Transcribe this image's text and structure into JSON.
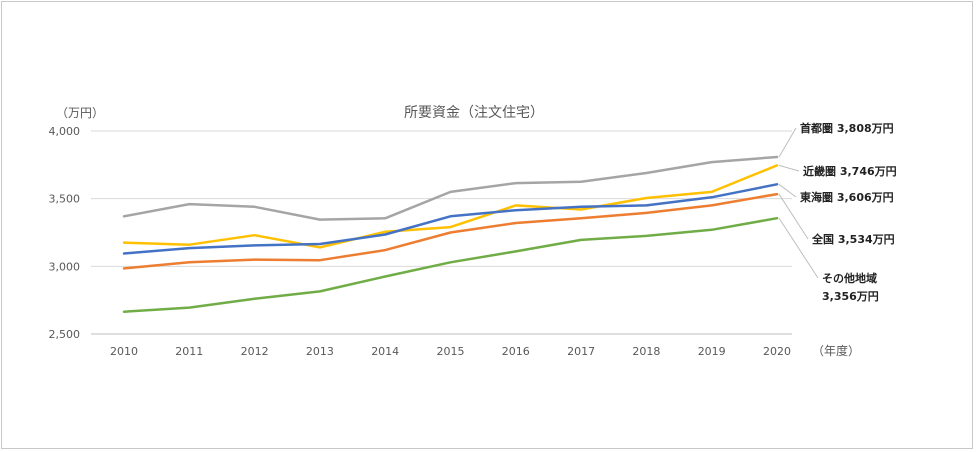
{
  "chart_data": {
    "type": "line",
    "title": "所要資金（注文住宅）",
    "ylabel": "（万円）",
    "xlabel": "（年度）",
    "ylim": [
      2500,
      4000
    ],
    "yticks": [
      "2,500",
      "3,000",
      "3,500",
      "4,000"
    ],
    "yticks_values": [
      2500,
      3000,
      3500,
      4000
    ],
    "categories": [
      "2010",
      "2011",
      "2012",
      "2013",
      "2014",
      "2015",
      "2016",
      "2017",
      "2018",
      "2019",
      "2020"
    ],
    "grid": true,
    "series": [
      {
        "name": "首都圏",
        "color": "#a5a5a5",
        "end_label": [
          "首都圏 3,808万円"
        ],
        "values": [
          3370,
          3460,
          3440,
          3345,
          3355,
          3550,
          3615,
          3625,
          3690,
          3770,
          3808
        ]
      },
      {
        "name": "近畿圏",
        "color": "#ffc000",
        "end_label": [
          "近畿圏 3,746万円"
        ],
        "values": [
          3175,
          3160,
          3230,
          3140,
          3255,
          3290,
          3450,
          3420,
          3505,
          3550,
          3746
        ]
      },
      {
        "name": "東海圏",
        "color": "#4472c4",
        "end_label": [
          "東海圏 3,606万円"
        ],
        "values": [
          3095,
          3135,
          3155,
          3165,
          3235,
          3370,
          3415,
          3440,
          3450,
          3510,
          3606
        ]
      },
      {
        "name": "全国",
        "color": "#ed7d31",
        "end_label": [
          "全国 3,534万円"
        ],
        "values": [
          2985,
          3030,
          3050,
          3045,
          3120,
          3250,
          3320,
          3355,
          3395,
          3450,
          3534
        ]
      },
      {
        "name": "その他地域",
        "color": "#70ad47",
        "end_label": [
          "その他地域",
          "3,356万円"
        ],
        "values": [
          2665,
          2695,
          2760,
          2815,
          2925,
          3030,
          3110,
          3195,
          3225,
          3270,
          3356
        ]
      }
    ]
  }
}
